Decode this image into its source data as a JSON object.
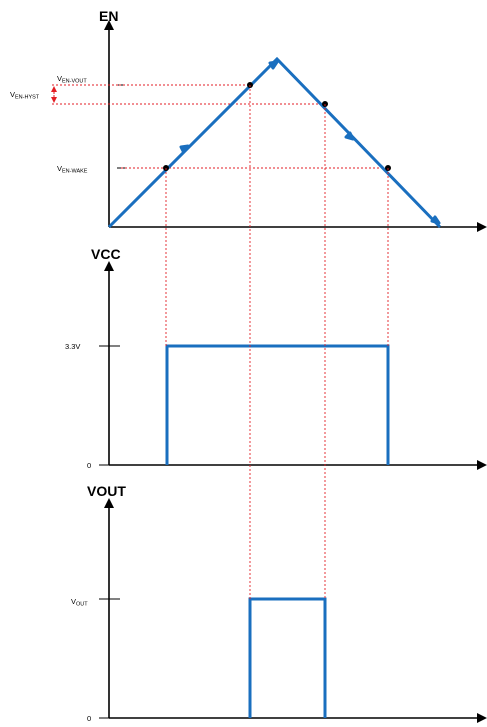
{
  "panels": {
    "en": {
      "title": "EN"
    },
    "vcc": {
      "title": "VCC"
    },
    "vout": {
      "title": "VOUT"
    }
  },
  "labels": {
    "v_en_vout": {
      "main": "V",
      "sub": "EN-VOUT"
    },
    "v_en_hyst": {
      "main": "V",
      "sub": "EN-HYST"
    },
    "v_en_wake": {
      "main": "V",
      "sub": "EN-WAKE"
    },
    "vcc_level": "3.3V",
    "vcc_zero": "0",
    "vout_level": {
      "main": "V",
      "sub": "OUT"
    },
    "vout_zero": "0"
  },
  "colors": {
    "trace": "#1a6fbf",
    "guide": "#e31e24",
    "axis": "#000000"
  }
}
